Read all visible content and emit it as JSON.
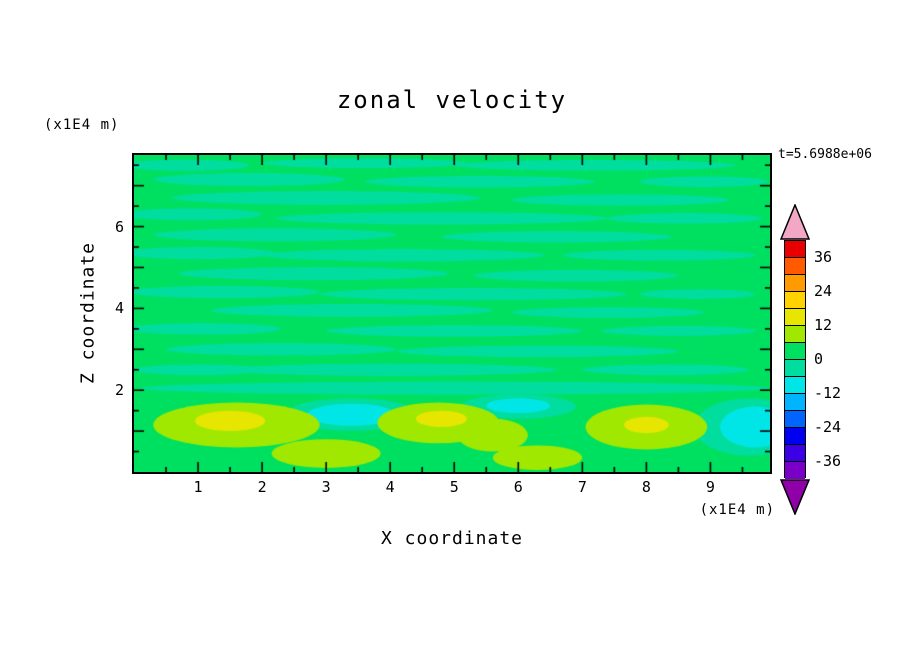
{
  "figure": {
    "title": "zonal velocity",
    "time_label": "t=5.6988e+06",
    "y_axis_unit": "(x1E4 m)",
    "x_axis_unit": "(x1E4 m)",
    "x_axis_label": "X coordinate",
    "y_axis_label": "Z coordinate"
  },
  "chart_data": {
    "type": "heatmap",
    "title": "zonal velocity",
    "xlabel": "X coordinate",
    "ylabel": "Z coordinate",
    "x_unit": "x1E4 m",
    "y_unit": "x1E4 m",
    "time_annotation": "t=5.6988e+06",
    "xlim": [
      0,
      9.93
    ],
    "ylim": [
      0,
      7.75
    ],
    "x_ticks": [
      1,
      2,
      3,
      4,
      5,
      6,
      7,
      8,
      9
    ],
    "y_ticks": [
      2,
      4,
      6
    ],
    "minor_tick_step": 0.5,
    "grid": false,
    "legend_position": "right-colorbar",
    "colorbar": {
      "tick_values": [
        36,
        24,
        12,
        0,
        -12,
        -24,
        -36
      ],
      "levels_min": -42,
      "levels_max": 42,
      "level_step": 6,
      "segment_colors_bottom_to_top": [
        "#7a00c8",
        "#3c00e6",
        "#0000f0",
        "#0064ff",
        "#00b4ff",
        "#00e6e6",
        "#00dd9e",
        "#00e060",
        "#a0e800",
        "#e6e600",
        "#ffd200",
        "#ff9b00",
        "#ff5a00",
        "#e80000"
      ],
      "under_arrow_color": "#9000a8",
      "over_arrow_color": "#f2a8c4"
    },
    "field": {
      "description": "Zonal velocity contour field: mostly near-zero green (0 to 6) with thin horizontal teal-green streaks (-6 to 0); below z~1.8 there are yellow-green positive blobs (6 to 18) and cyan negative patches (-12 to -6).",
      "base_level": 3,
      "patches": [
        {
          "x": 0.8,
          "z": 7.5,
          "rx": 1.0,
          "rz": 0.14,
          "level": -3
        },
        {
          "x": 3.6,
          "z": 7.55,
          "rx": 1.6,
          "rz": 0.12,
          "level": -3
        },
        {
          "x": 7.2,
          "z": 7.5,
          "rx": 2.2,
          "rz": 0.13,
          "level": -3
        },
        {
          "x": 1.8,
          "z": 7.15,
          "rx": 1.5,
          "rz": 0.16,
          "level": -3
        },
        {
          "x": 5.4,
          "z": 7.1,
          "rx": 1.8,
          "rz": 0.14,
          "level": -3
        },
        {
          "x": 8.9,
          "z": 7.1,
          "rx": 1.0,
          "rz": 0.13,
          "level": -3
        },
        {
          "x": 3.0,
          "z": 6.7,
          "rx": 2.4,
          "rz": 0.17,
          "level": -3
        },
        {
          "x": 7.6,
          "z": 6.65,
          "rx": 1.7,
          "rz": 0.14,
          "level": -3
        },
        {
          "x": 0.9,
          "z": 6.3,
          "rx": 1.1,
          "rz": 0.15,
          "level": -3
        },
        {
          "x": 4.8,
          "z": 6.2,
          "rx": 2.6,
          "rz": 0.15,
          "level": -3
        },
        {
          "x": 8.6,
          "z": 6.2,
          "rx": 1.2,
          "rz": 0.13,
          "level": -3
        },
        {
          "x": 2.2,
          "z": 5.8,
          "rx": 1.9,
          "rz": 0.16,
          "level": -3
        },
        {
          "x": 6.6,
          "z": 5.75,
          "rx": 1.8,
          "rz": 0.14,
          "level": -3
        },
        {
          "x": 1.0,
          "z": 5.35,
          "rx": 1.2,
          "rz": 0.15,
          "level": -3
        },
        {
          "x": 4.2,
          "z": 5.3,
          "rx": 2.2,
          "rz": 0.15,
          "level": -3
        },
        {
          "x": 8.2,
          "z": 5.3,
          "rx": 1.5,
          "rz": 0.13,
          "level": -3
        },
        {
          "x": 2.8,
          "z": 4.85,
          "rx": 2.1,
          "rz": 0.16,
          "level": -3
        },
        {
          "x": 6.9,
          "z": 4.8,
          "rx": 1.6,
          "rz": 0.14,
          "level": -3
        },
        {
          "x": 1.4,
          "z": 4.4,
          "rx": 1.5,
          "rz": 0.15,
          "level": -3
        },
        {
          "x": 5.3,
          "z": 4.35,
          "rx": 2.4,
          "rz": 0.15,
          "level": -3
        },
        {
          "x": 8.8,
          "z": 4.35,
          "rx": 0.9,
          "rz": 0.12,
          "level": -3
        },
        {
          "x": 3.4,
          "z": 3.95,
          "rx": 2.2,
          "rz": 0.16,
          "level": -3
        },
        {
          "x": 7.4,
          "z": 3.9,
          "rx": 1.5,
          "rz": 0.13,
          "level": -3
        },
        {
          "x": 1.1,
          "z": 3.5,
          "rx": 1.2,
          "rz": 0.14,
          "level": -3
        },
        {
          "x": 5.0,
          "z": 3.45,
          "rx": 2.0,
          "rz": 0.14,
          "level": -3
        },
        {
          "x": 8.5,
          "z": 3.45,
          "rx": 1.2,
          "rz": 0.12,
          "level": -3
        },
        {
          "x": 2.3,
          "z": 3.0,
          "rx": 1.8,
          "rz": 0.15,
          "level": -3
        },
        {
          "x": 6.3,
          "z": 2.95,
          "rx": 2.2,
          "rz": 0.14,
          "level": -3
        },
        {
          "x": 4.0,
          "z": 2.5,
          "rx": 2.6,
          "rz": 0.15,
          "level": -3
        },
        {
          "x": 8.3,
          "z": 2.5,
          "rx": 1.3,
          "rz": 0.13,
          "level": -3
        },
        {
          "x": 1.0,
          "z": 2.5,
          "rx": 1.0,
          "rz": 0.13,
          "level": -3
        },
        {
          "x": 5.0,
          "z": 2.05,
          "rx": 4.9,
          "rz": 0.16,
          "level": -3
        },
        {
          "x": 3.4,
          "z": 1.4,
          "rx": 1.05,
          "rz": 0.4,
          "level": -3
        },
        {
          "x": 9.6,
          "z": 1.1,
          "rx": 0.85,
          "rz": 0.7,
          "level": -3
        },
        {
          "x": 6.0,
          "z": 1.6,
          "rx": 0.9,
          "rz": 0.3,
          "level": -3
        },
        {
          "x": 3.4,
          "z": 1.4,
          "rx": 0.7,
          "rz": 0.27,
          "level": -9
        },
        {
          "x": 9.7,
          "z": 1.1,
          "rx": 0.55,
          "rz": 0.5,
          "level": -9
        },
        {
          "x": 6.0,
          "z": 1.62,
          "rx": 0.5,
          "rz": 0.18,
          "level": -9
        },
        {
          "x": 1.6,
          "z": 1.15,
          "rx": 1.3,
          "rz": 0.55,
          "level": 9
        },
        {
          "x": 3.0,
          "z": 0.45,
          "rx": 0.85,
          "rz": 0.35,
          "level": 9
        },
        {
          "x": 4.75,
          "z": 1.2,
          "rx": 0.95,
          "rz": 0.5,
          "level": 9
        },
        {
          "x": 5.6,
          "z": 0.9,
          "rx": 0.55,
          "rz": 0.4,
          "level": 9
        },
        {
          "x": 8.0,
          "z": 1.1,
          "rx": 0.95,
          "rz": 0.55,
          "level": 9
        },
        {
          "x": 6.3,
          "z": 0.35,
          "rx": 0.7,
          "rz": 0.3,
          "level": 9
        },
        {
          "x": 1.5,
          "z": 1.25,
          "rx": 0.55,
          "rz": 0.25,
          "level": 15
        },
        {
          "x": 4.8,
          "z": 1.3,
          "rx": 0.4,
          "rz": 0.2,
          "level": 15
        },
        {
          "x": 8.0,
          "z": 1.15,
          "rx": 0.35,
          "rz": 0.2,
          "level": 15
        }
      ]
    }
  }
}
